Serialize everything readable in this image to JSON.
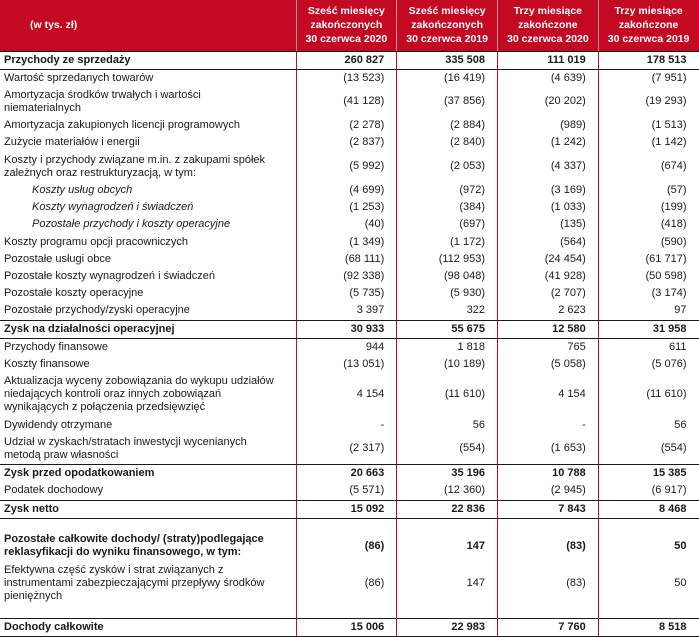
{
  "colors": {
    "header_bg": "#C40A23",
    "header_text": "#FFFFFF",
    "grid_red": "#C40A23",
    "rule_black": "#1A1A1A",
    "body_text": "#1A1A1A"
  },
  "table": {
    "unit_label": "(w tys. zł)",
    "column_headers": [
      "Sześć miesięcy\nzakończonych\n30 czerwca 2020",
      "Sześć miesięcy\nzakończonych\n30 czerwca 2019",
      "Trzy miesiące\nzakończone\n30 czerwca 2020",
      "Trzy miesiące\nzakończone\n30 czerwca 2019"
    ],
    "rows": [
      {
        "label": "Przychody ze sprzedaży",
        "values": [
          "260 827",
          "335 508",
          "111 019",
          "178 513"
        ],
        "emphasis": true,
        "rule_below": true
      },
      {
        "label": "Wartość sprzedanych towarów",
        "values": [
          "(13 523)",
          "(16 419)",
          "(4 639)",
          "(7 951)"
        ]
      },
      {
        "label": "Amortyzacja środków trwałych i wartości niematerialnych",
        "values": [
          "(41 128)",
          "(37 856)",
          "(20 202)",
          "(19 293)"
        ]
      },
      {
        "label": "Amortyzacja zakupionych licencji programowych",
        "values": [
          "(2 278)",
          "(2 884)",
          "(989)",
          "(1 513)"
        ]
      },
      {
        "label": "Zużycie materiałów i energii",
        "values": [
          "(2 837)",
          "(2 840)",
          "(1 242)",
          "(1 142)"
        ]
      },
      {
        "label": "Koszty i przychody związane m.in. z zakupami spółek zależnych oraz restrukturyzacją, w tym:",
        "values": [
          "(5 992)",
          "(2 053)",
          "(4 337)",
          "(674)"
        ]
      },
      {
        "label": "Koszty usług obcych",
        "values": [
          "(4 699)",
          "(972)",
          "(3 169)",
          "(57)"
        ],
        "italic": true,
        "indent": true
      },
      {
        "label": "Koszty wynagrodzeń i świadczeń",
        "values": [
          "(1 253)",
          "(384)",
          "(1 033)",
          "(199)"
        ],
        "italic": true,
        "indent": true
      },
      {
        "label": "Pozostałe przychody i koszty operacyjne",
        "values": [
          "(40)",
          "(697)",
          "(135)",
          "(418)"
        ],
        "italic": true,
        "indent": true
      },
      {
        "label": "Koszty programu opcji pracowniczych",
        "values": [
          "(1 349)",
          "(1 172)",
          "(564)",
          "(590)"
        ]
      },
      {
        "label": "Pozostałe usługi obce",
        "values": [
          "(68 111)",
          "(112 953)",
          "(24 454)",
          "(61 717)"
        ]
      },
      {
        "label": "Pozostałe koszty wynagrodzeń i świadczeń",
        "values": [
          "(92 338)",
          "(98 048)",
          "(41 928)",
          "(50 598)"
        ]
      },
      {
        "label": "Pozostałe koszty operacyjne",
        "values": [
          "(5 735)",
          "(5 930)",
          "(2 707)",
          "(3 174)"
        ]
      },
      {
        "label": "Pozostałe przychody/zyski operacyjne",
        "values": [
          "3 397",
          "322",
          "2 623",
          "97"
        ],
        "rule_below": true
      },
      {
        "label": "Zysk na działalności operacyjnej",
        "values": [
          "30 933",
          "55 675",
          "12 580",
          "31 958"
        ],
        "emphasis": true,
        "rule_below": true
      },
      {
        "label": "Przychody finansowe",
        "values": [
          "944",
          "1 818",
          "765",
          "611"
        ]
      },
      {
        "label": "Koszty finansowe",
        "values": [
          "(13 051)",
          "(10 189)",
          "(5 058)",
          "(5 076)"
        ]
      },
      {
        "label": "Aktualizacja wyceny zobowiązania do wykupu udziałów niedających kontroli oraz innych zobowiązań wynikających z połączenia przedsięwzięć",
        "values": [
          "4 154",
          "(11 610)",
          "4 154",
          "(11 610)"
        ]
      },
      {
        "label": "Dywidendy otrzymane",
        "values": [
          "-",
          "56",
          "-",
          "56"
        ]
      },
      {
        "label": "Udział w zyskach/stratach inwestycji wycenianych metodą praw własności",
        "values": [
          "(2 317)",
          "(554)",
          "(1 653)",
          "(554)"
        ],
        "rule_below": true
      },
      {
        "label": "Zysk przed opodatkowaniem",
        "values": [
          "20 663",
          "35 196",
          "10 788",
          "15 385"
        ],
        "emphasis": true
      },
      {
        "label": "Podatek dochodowy",
        "values": [
          "(5 571)",
          "(12 360)",
          "(2 945)",
          "(6 917)"
        ],
        "rule_below": true
      },
      {
        "label": "Zysk netto",
        "values": [
          "15 092",
          "22 836",
          "7 843",
          "8 468"
        ],
        "emphasis": true,
        "rule_below": true
      },
      {
        "spacer": true
      },
      {
        "label": "Pozostałe całkowite dochody/ (straty)podlegające reklasyfikacji do wyniku finansowego, w tym:",
        "values": [
          "(86)",
          "147",
          "(83)",
          "50"
        ],
        "emphasis": true
      },
      {
        "label": "Efektywna część zysków i strat związanych z instrumentami zabezpieczającymi przepływy środków pieniężnych",
        "values": [
          "(86)",
          "147",
          "(83)",
          "50"
        ]
      },
      {
        "spacer": true
      },
      {
        "label": "Dochody całkowite",
        "values": [
          "15 006",
          "22 983",
          "7 760",
          "8 518"
        ],
        "emphasis": true,
        "rule_above": true,
        "rule_below": true
      }
    ]
  }
}
